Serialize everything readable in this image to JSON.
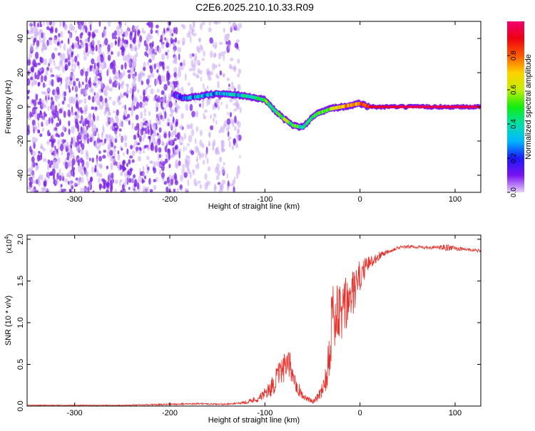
{
  "title": "C2E6.2025.210.10.33.R09",
  "colors": {
    "snr_line": "#e8302a",
    "axis": "#000000",
    "spec_sparse": "#c9a8f4",
    "spec_dense": "#7a1fe6",
    "colormap": [
      "#e4d0fb",
      "#7b12f0",
      "#1a1aff",
      "#00b8ff",
      "#00e0a8",
      "#10ee10",
      "#c4ee00",
      "#ffd000",
      "#ff5a00",
      "#ee0010",
      "#f00070"
    ]
  },
  "chart_data": [
    {
      "type": "heatmap",
      "xlabel": "Height of straight line (km)",
      "ylabel": "Frequency (Hz)",
      "xlim": [
        -350,
        127
      ],
      "ylim": [
        -50,
        50
      ],
      "xticks": [
        -300,
        -200,
        -100,
        0,
        100
      ],
      "xtick_labels": [
        "-300",
        "-200",
        "-100",
        "0",
        "100"
      ],
      "yticks": [
        -40,
        -20,
        0,
        20,
        40
      ],
      "ytick_labels": [
        "-40",
        "-20",
        "0",
        "20",
        "40"
      ],
      "colorbar": {
        "label": "Normalized spectral amplitude",
        "range": [
          0,
          1
        ],
        "ticks": [
          0.0,
          0.2,
          0.4,
          0.6,
          0.8
        ],
        "tick_labels": [
          "0.0",
          "0.2",
          "0.4",
          "0.6",
          "0.8"
        ]
      },
      "carrier_track": {
        "x": [
          -195,
          -185,
          -170,
          -150,
          -130,
          -115,
          -100,
          -90,
          -80,
          -70,
          -60,
          -55,
          -50,
          -45,
          -40,
          -30,
          -20,
          -10,
          0,
          10,
          50,
          127
        ],
        "y": [
          7,
          5,
          6,
          8,
          7,
          6,
          4,
          -2,
          -7,
          -11,
          -12,
          -9,
          -6,
          -4,
          -3,
          -1,
          0,
          1,
          2,
          0,
          0,
          0
        ],
        "amplitude": [
          0.2,
          0.25,
          0.3,
          0.3,
          0.35,
          0.4,
          0.45,
          0.5,
          0.55,
          0.5,
          0.45,
          0.4,
          0.4,
          0.45,
          0.5,
          0.6,
          0.7,
          0.75,
          0.8,
          0.9,
          0.95,
          0.95
        ]
      },
      "noise_regions": [
        {
          "x": [
            -350,
            -190
          ],
          "density": "dense"
        },
        {
          "x": [
            -190,
            -125
          ],
          "density": "sparse"
        }
      ]
    },
    {
      "type": "line",
      "xlabel": "Height of straight line (km)",
      "ylabel": "SNR (10 * v/v)",
      "y_multiplier": "(x10",
      "y_multiplier_exp": "4",
      "y_multiplier_close": ")",
      "xlim": [
        -350,
        127
      ],
      "ylim": [
        0,
        2.05
      ],
      "xticks": [
        -300,
        -200,
        -100,
        0,
        100
      ],
      "xtick_labels": [
        "-300",
        "-200",
        "-100",
        "0",
        "100"
      ],
      "yticks": [
        0.0,
        0.5,
        1.0,
        1.5,
        2.0
      ],
      "ytick_labels": [
        "0.0",
        "0.5",
        "1.0",
        "1.5",
        "2.0"
      ],
      "series": [
        {
          "x": [
            -350,
            -300,
            -250,
            -200,
            -170,
            -150,
            -130,
            -115,
            -105,
            -100,
            -95,
            -90,
            -85,
            -80,
            -75,
            -70,
            -65,
            -60,
            -55,
            -50,
            -45,
            -40,
            -35,
            -32,
            -30,
            -28,
            -25,
            -20,
            -15,
            -10,
            -5,
            0,
            5,
            10,
            20,
            30,
            40,
            50,
            60,
            70,
            80,
            90,
            100,
            110,
            120,
            127
          ],
          "y": [
            0.01,
            0.01,
            0.01,
            0.02,
            0.03,
            0.02,
            0.03,
            0.06,
            0.1,
            0.15,
            0.2,
            0.28,
            0.38,
            0.45,
            0.5,
            0.38,
            0.22,
            0.12,
            0.08,
            0.06,
            0.1,
            0.2,
            0.4,
            0.7,
            1.0,
            1.1,
            1.05,
            1.1,
            1.2,
            1.3,
            1.4,
            1.55,
            1.65,
            1.72,
            1.8,
            1.86,
            1.9,
            1.91,
            1.91,
            1.9,
            1.9,
            1.9,
            1.89,
            1.88,
            1.87,
            1.86
          ],
          "noise": [
            0.005,
            0.005,
            0.005,
            0.01,
            0.01,
            0.01,
            0.01,
            0.03,
            0.05,
            0.07,
            0.1,
            0.13,
            0.15,
            0.17,
            0.18,
            0.15,
            0.1,
            0.05,
            0.03,
            0.03,
            0.05,
            0.1,
            0.25,
            0.35,
            0.45,
            0.45,
            0.4,
            0.4,
            0.35,
            0.3,
            0.25,
            0.2,
            0.12,
            0.08,
            0.05,
            0.03,
            0.02,
            0.02,
            0.02,
            0.02,
            0.02,
            0.04,
            0.03,
            0.02,
            0.02,
            0.02
          ]
        }
      ]
    }
  ]
}
